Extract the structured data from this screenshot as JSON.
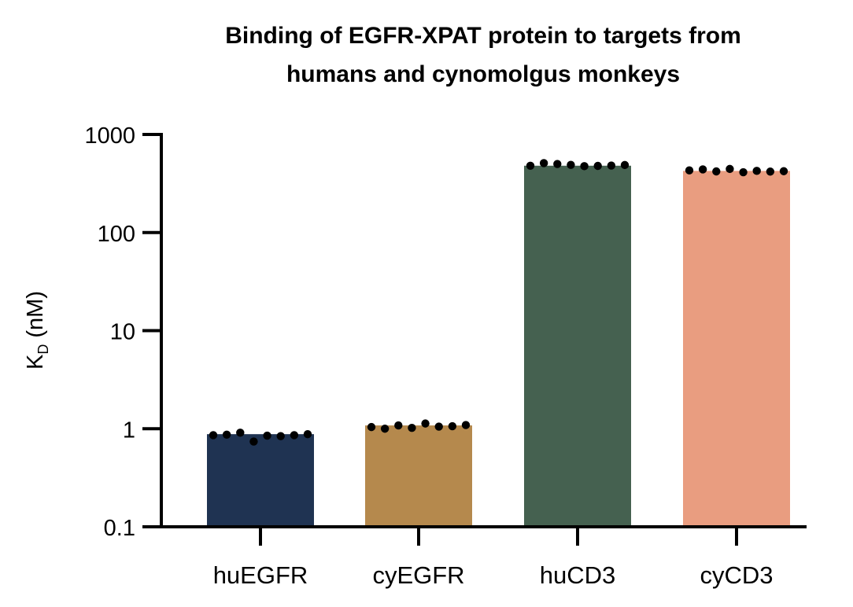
{
  "chart_data": {
    "type": "bar",
    "title": "Binding of EGFR-XPAT protein to targets from humans and cynomolgus monkeys",
    "title_lines": [
      "Binding of EGFR-XPAT protein to targets from",
      "humans and cynomolgus monkeys"
    ],
    "ylabel": {
      "main": "K",
      "subscript": "D",
      "unit": " (nM)"
    },
    "xlabel": "",
    "yscale": "log",
    "ylim": [
      0.1,
      1000
    ],
    "yticks": [
      0.1,
      1,
      10,
      100,
      1000
    ],
    "ytick_labels": [
      "0.1",
      "1",
      "10",
      "100",
      "1000"
    ],
    "categories": [
      "huEGFR",
      "cyEGFR",
      "huCD3",
      "cyCD3"
    ],
    "values": [
      0.88,
      1.08,
      480,
      425
    ],
    "colors": [
      "#1f3352",
      "#b5894d",
      "#456150",
      "#e99d80"
    ],
    "points": [
      [
        0.86,
        0.87,
        0.91,
        0.74,
        0.85,
        0.84,
        0.86,
        0.88
      ],
      [
        1.04,
        1.0,
        1.08,
        1.02,
        1.13,
        1.05,
        1.06,
        1.09
      ],
      [
        480,
        510,
        500,
        490,
        475,
        478,
        482,
        488
      ],
      [
        430,
        440,
        420,
        445,
        412,
        425,
        418,
        422
      ]
    ],
    "grid": false,
    "legend": "none"
  }
}
